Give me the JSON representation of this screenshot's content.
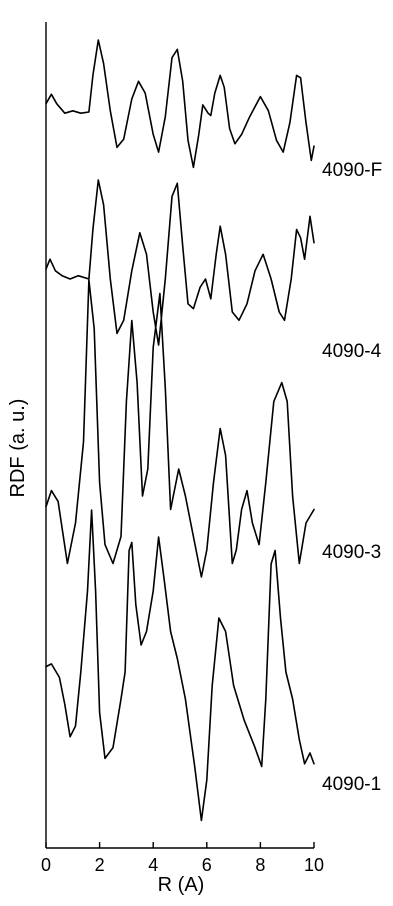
{
  "chart_data": {
    "type": "line",
    "xlabel": "R (A)",
    "ylabel": "RDF (a. u.)",
    "xlim": [
      0,
      10
    ],
    "x_ticks": [
      0,
      2,
      4,
      6,
      8,
      10
    ],
    "x_tick_labels": [
      "0",
      "2",
      "4",
      "6",
      "8",
      "10"
    ],
    "y_ticks_shown": false,
    "grid": false,
    "legend": "labels-beside-curves",
    "line_color": "#000000",
    "series": [
      {
        "name": "4090-F",
        "points": [
          [
            0,
            0.46
          ],
          [
            0.2,
            0.54
          ],
          [
            0.4,
            0.46
          ],
          [
            0.7,
            0.38
          ],
          [
            1.0,
            0.4
          ],
          [
            1.3,
            0.38
          ],
          [
            1.6,
            0.39
          ],
          [
            1.75,
            0.7
          ],
          [
            1.95,
            1.0
          ],
          [
            2.15,
            0.8
          ],
          [
            2.4,
            0.4
          ],
          [
            2.65,
            0.09
          ],
          [
            2.9,
            0.16
          ],
          [
            3.2,
            0.5
          ],
          [
            3.45,
            0.65
          ],
          [
            3.7,
            0.55
          ],
          [
            4.0,
            0.2
          ],
          [
            4.2,
            0.05
          ],
          [
            4.45,
            0.35
          ],
          [
            4.7,
            0.85
          ],
          [
            4.9,
            0.92
          ],
          [
            5.1,
            0.65
          ],
          [
            5.3,
            0.15
          ],
          [
            5.5,
            -0.08
          ],
          [
            5.7,
            0.2
          ],
          [
            5.85,
            0.45
          ],
          [
            6.05,
            0.38
          ],
          [
            6.15,
            0.36
          ],
          [
            6.3,
            0.55
          ],
          [
            6.5,
            0.7
          ],
          [
            6.65,
            0.6
          ],
          [
            6.85,
            0.25
          ],
          [
            7.05,
            0.12
          ],
          [
            7.3,
            0.2
          ],
          [
            7.6,
            0.35
          ],
          [
            8.0,
            0.52
          ],
          [
            8.3,
            0.4
          ],
          [
            8.6,
            0.15
          ],
          [
            8.85,
            0.05
          ],
          [
            9.1,
            0.3
          ],
          [
            9.35,
            0.7
          ],
          [
            9.5,
            0.68
          ],
          [
            9.7,
            0.3
          ],
          [
            9.9,
            -0.02
          ],
          [
            10.0,
            0.1
          ]
        ]
      },
      {
        "name": "4090-4",
        "points": [
          [
            0,
            0.46
          ],
          [
            0.15,
            0.52
          ],
          [
            0.35,
            0.45
          ],
          [
            0.6,
            0.42
          ],
          [
            0.9,
            0.4
          ],
          [
            1.2,
            0.42
          ],
          [
            1.6,
            0.4
          ],
          [
            1.75,
            0.7
          ],
          [
            1.95,
            1.0
          ],
          [
            2.15,
            0.85
          ],
          [
            2.4,
            0.4
          ],
          [
            2.65,
            0.07
          ],
          [
            2.9,
            0.15
          ],
          [
            3.2,
            0.45
          ],
          [
            3.5,
            0.68
          ],
          [
            3.75,
            0.55
          ],
          [
            4.0,
            0.2
          ],
          [
            4.2,
            0.0
          ],
          [
            4.45,
            0.4
          ],
          [
            4.7,
            0.9
          ],
          [
            4.9,
            0.98
          ],
          [
            5.1,
            0.6
          ],
          [
            5.3,
            0.25
          ],
          [
            5.5,
            0.22
          ],
          [
            5.75,
            0.35
          ],
          [
            5.95,
            0.4
          ],
          [
            6.15,
            0.28
          ],
          [
            6.35,
            0.55
          ],
          [
            6.5,
            0.72
          ],
          [
            6.7,
            0.55
          ],
          [
            6.95,
            0.2
          ],
          [
            7.2,
            0.15
          ],
          [
            7.5,
            0.25
          ],
          [
            7.8,
            0.45
          ],
          [
            8.1,
            0.55
          ],
          [
            8.4,
            0.4
          ],
          [
            8.7,
            0.2
          ],
          [
            8.9,
            0.15
          ],
          [
            9.15,
            0.4
          ],
          [
            9.35,
            0.7
          ],
          [
            9.5,
            0.65
          ],
          [
            9.65,
            0.52
          ],
          [
            9.85,
            0.78
          ],
          [
            10.0,
            0.62
          ]
        ]
      },
      {
        "name": "4090-3",
        "points": [
          [
            0,
            0.16
          ],
          [
            0.2,
            0.22
          ],
          [
            0.45,
            0.18
          ],
          [
            0.8,
            -0.05
          ],
          [
            1.1,
            0.1
          ],
          [
            1.4,
            0.4
          ],
          [
            1.6,
            1.0
          ],
          [
            1.8,
            0.82
          ],
          [
            2.0,
            0.25
          ],
          [
            2.2,
            0.02
          ],
          [
            2.5,
            -0.05
          ],
          [
            2.8,
            0.05
          ],
          [
            3.0,
            0.55
          ],
          [
            3.2,
            0.85
          ],
          [
            3.4,
            0.62
          ],
          [
            3.6,
            0.2
          ],
          [
            3.8,
            0.3
          ],
          [
            4.0,
            0.75
          ],
          [
            4.25,
            0.95
          ],
          [
            4.45,
            0.6
          ],
          [
            4.65,
            0.15
          ],
          [
            4.95,
            0.3
          ],
          [
            5.2,
            0.2
          ],
          [
            5.5,
            0.05
          ],
          [
            5.8,
            -0.1
          ],
          [
            6.0,
            0.0
          ],
          [
            6.25,
            0.25
          ],
          [
            6.5,
            0.45
          ],
          [
            6.7,
            0.35
          ],
          [
            6.95,
            -0.05
          ],
          [
            7.1,
            0.0
          ],
          [
            7.3,
            0.15
          ],
          [
            7.5,
            0.22
          ],
          [
            7.7,
            0.1
          ],
          [
            7.95,
            0.02
          ],
          [
            8.2,
            0.25
          ],
          [
            8.5,
            0.55
          ],
          [
            8.8,
            0.62
          ],
          [
            9.0,
            0.55
          ],
          [
            9.2,
            0.2
          ],
          [
            9.45,
            -0.05
          ],
          [
            9.7,
            0.1
          ],
          [
            10.0,
            0.15
          ]
        ]
      },
      {
        "name": "4090-1",
        "points": [
          [
            0,
            0.42
          ],
          [
            0.2,
            0.43
          ],
          [
            0.5,
            0.38
          ],
          [
            0.7,
            0.28
          ],
          [
            0.9,
            0.16
          ],
          [
            1.1,
            0.2
          ],
          [
            1.3,
            0.4
          ],
          [
            1.55,
            0.7
          ],
          [
            1.7,
            1.0
          ],
          [
            1.85,
            0.7
          ],
          [
            2.0,
            0.25
          ],
          [
            2.2,
            0.08
          ],
          [
            2.5,
            0.12
          ],
          [
            2.8,
            0.3
          ],
          [
            2.95,
            0.4
          ],
          [
            3.1,
            0.85
          ],
          [
            3.2,
            0.88
          ],
          [
            3.35,
            0.65
          ],
          [
            3.55,
            0.5
          ],
          [
            3.75,
            0.55
          ],
          [
            4.0,
            0.7
          ],
          [
            4.2,
            0.9
          ],
          [
            4.4,
            0.75
          ],
          [
            4.65,
            0.55
          ],
          [
            4.9,
            0.45
          ],
          [
            5.2,
            0.3
          ],
          [
            5.55,
            0.05
          ],
          [
            5.8,
            -0.15
          ],
          [
            6.0,
            0.0
          ],
          [
            6.2,
            0.35
          ],
          [
            6.45,
            0.6
          ],
          [
            6.7,
            0.55
          ],
          [
            7.0,
            0.35
          ],
          [
            7.4,
            0.22
          ],
          [
            7.8,
            0.12
          ],
          [
            8.05,
            0.05
          ],
          [
            8.2,
            0.3
          ],
          [
            8.4,
            0.8
          ],
          [
            8.55,
            0.85
          ],
          [
            8.75,
            0.6
          ],
          [
            8.95,
            0.4
          ],
          [
            9.2,
            0.3
          ],
          [
            9.45,
            0.15
          ],
          [
            9.65,
            0.06
          ],
          [
            9.85,
            0.1
          ],
          [
            10.0,
            0.06
          ]
        ]
      }
    ]
  }
}
